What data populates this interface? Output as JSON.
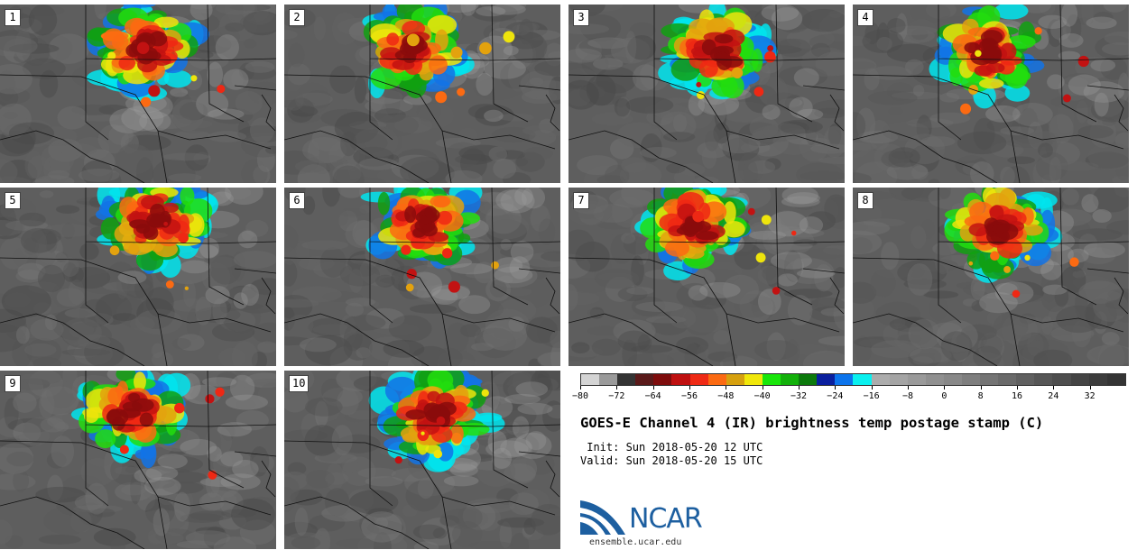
{
  "panels": [
    {
      "label": "1"
    },
    {
      "label": "2"
    },
    {
      "label": "3"
    },
    {
      "label": "4"
    },
    {
      "label": "5"
    },
    {
      "label": "6"
    },
    {
      "label": "7"
    },
    {
      "label": "8"
    },
    {
      "label": "9"
    },
    {
      "label": "10"
    }
  ],
  "colorbar": {
    "colors": [
      "#d4d4d4",
      "#9a9a9a",
      "#343434",
      "#5a1a1a",
      "#7e0c0c",
      "#bf1010",
      "#ef2a15",
      "#fb6a12",
      "#d6a00e",
      "#f0e70a",
      "#19e60a",
      "#12b00a",
      "#0c7a0c",
      "#0a1f9e",
      "#0c74ec",
      "#0af0ef",
      "#acacac",
      "#a4a4a4",
      "#9a9a9a",
      "#909090",
      "#888888",
      "#7e7e7e",
      "#747474",
      "#6a6a6a",
      "#606060",
      "#565656",
      "#4e4e4e",
      "#444444",
      "#3c3c3c",
      "#343434"
    ],
    "ticks": [
      "−80",
      "−72",
      "−64",
      "−56",
      "−48",
      "−40",
      "−32",
      "−24",
      "−16",
      "−8",
      "0",
      "8",
      "16",
      "24",
      "32"
    ]
  },
  "title": "GOES-E Channel 4 (IR) brightness temp postage stamp (C)",
  "init_label": " Init: Sun 2018-05-20 12 UTC",
  "valid_label": "Valid: Sun 2018-05-20 15 UTC",
  "logo": {
    "text": "NCAR",
    "url": "ensemble.ucar.edu"
  }
}
